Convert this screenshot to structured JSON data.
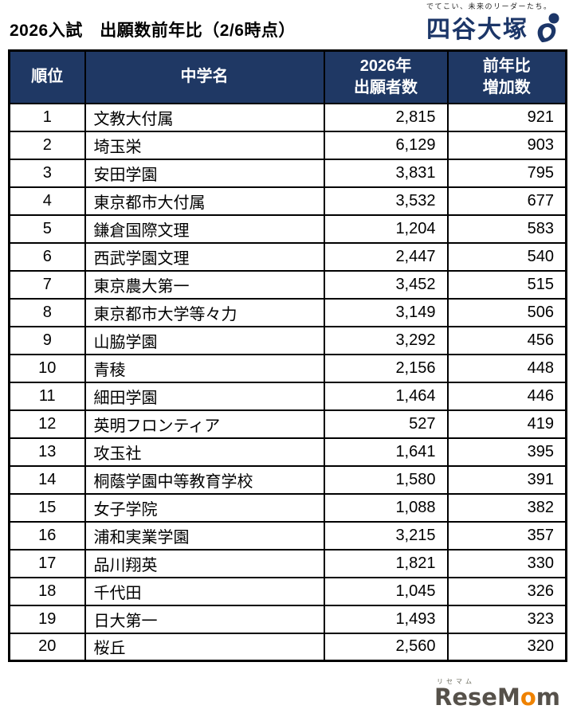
{
  "page": {
    "title": "2026入試　出願数前年比（2/6時点）"
  },
  "brand": {
    "tagline": "でてこい、未来のリーダーたち。",
    "name": "四谷大塚",
    "color": "#1c3668"
  },
  "table": {
    "header_bg": "#1f3864",
    "headers": [
      "順位",
      "中学名",
      "2026年\n出願者数",
      "前年比\n増加数"
    ],
    "rows": [
      {
        "rank": "1",
        "school": "文教大付属",
        "applicants": "2,815",
        "increase": "921"
      },
      {
        "rank": "2",
        "school": "埼玉栄",
        "applicants": "6,129",
        "increase": "903"
      },
      {
        "rank": "3",
        "school": "安田学園",
        "applicants": "3,831",
        "increase": "795"
      },
      {
        "rank": "4",
        "school": "東京都市大付属",
        "applicants": "3,532",
        "increase": "677"
      },
      {
        "rank": "5",
        "school": "鎌倉国際文理",
        "applicants": "1,204",
        "increase": "583"
      },
      {
        "rank": "6",
        "school": "西武学園文理",
        "applicants": "2,447",
        "increase": "540"
      },
      {
        "rank": "7",
        "school": "東京農大第一",
        "applicants": "3,452",
        "increase": "515"
      },
      {
        "rank": "8",
        "school": "東京都市大学等々力",
        "applicants": "3,149",
        "increase": "506"
      },
      {
        "rank": "9",
        "school": "山脇学園",
        "applicants": "3,292",
        "increase": "456"
      },
      {
        "rank": "10",
        "school": "青稜",
        "applicants": "2,156",
        "increase": "448"
      },
      {
        "rank": "11",
        "school": "細田学園",
        "applicants": "1,464",
        "increase": "446"
      },
      {
        "rank": "12",
        "school": "英明フロンティア",
        "applicants": "527",
        "increase": "419"
      },
      {
        "rank": "13",
        "school": "攻玉社",
        "applicants": "1,641",
        "increase": "395"
      },
      {
        "rank": "14",
        "school": "桐蔭学園中等教育学校",
        "applicants": "1,580",
        "increase": "391"
      },
      {
        "rank": "15",
        "school": "女子学院",
        "applicants": "1,088",
        "increase": "382"
      },
      {
        "rank": "16",
        "school": "浦和実業学園",
        "applicants": "3,215",
        "increase": "357"
      },
      {
        "rank": "17",
        "school": "品川翔英",
        "applicants": "1,821",
        "increase": "330"
      },
      {
        "rank": "18",
        "school": "千代田",
        "applicants": "1,045",
        "increase": "326"
      },
      {
        "rank": "19",
        "school": "日大第一",
        "applicants": "1,493",
        "increase": "323"
      },
      {
        "rank": "20",
        "school": "桜丘",
        "applicants": "2,560",
        "increase": "320"
      }
    ]
  },
  "footer": {
    "kana": "リセマム",
    "logo_part1": "ReseM",
    "logo_o": "o",
    "logo_part2": "m",
    "accent_color": "#ef8200"
  },
  "chart_data": {
    "type": "table",
    "title": "2026入試　出願数前年比（2/6時点）",
    "columns": [
      "順位",
      "中学名",
      "2026年出願者数",
      "前年比増加数"
    ],
    "rows": [
      [
        1,
        "文教大付属",
        2815,
        921
      ],
      [
        2,
        "埼玉栄",
        6129,
        903
      ],
      [
        3,
        "安田学園",
        3831,
        795
      ],
      [
        4,
        "東京都市大付属",
        3532,
        677
      ],
      [
        5,
        "鎌倉国際文理",
        1204,
        583
      ],
      [
        6,
        "西武学園文理",
        2447,
        540
      ],
      [
        7,
        "東京農大第一",
        3452,
        515
      ],
      [
        8,
        "東京都市大学等々力",
        3149,
        506
      ],
      [
        9,
        "山脇学園",
        3292,
        456
      ],
      [
        10,
        "青稜",
        2156,
        448
      ],
      [
        11,
        "細田学園",
        1464,
        446
      ],
      [
        12,
        "英明フロンティア",
        527,
        419
      ],
      [
        13,
        "攻玉社",
        1641,
        395
      ],
      [
        14,
        "桐蔭学園中等教育学校",
        1580,
        391
      ],
      [
        15,
        "女子学院",
        1088,
        382
      ],
      [
        16,
        "浦和実業学園",
        3215,
        357
      ],
      [
        17,
        "品川翔英",
        1821,
        330
      ],
      [
        18,
        "千代田",
        1045,
        326
      ],
      [
        19,
        "日大第一",
        1493,
        323
      ],
      [
        20,
        "桜丘",
        2560,
        320
      ]
    ]
  }
}
